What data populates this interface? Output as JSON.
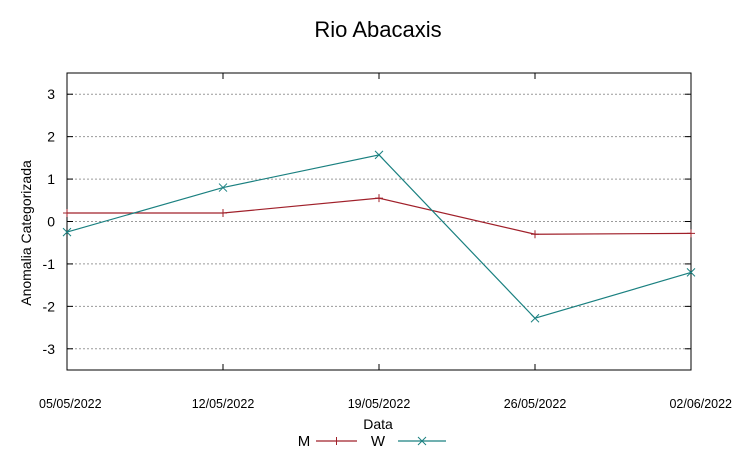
{
  "chart_data": {
    "type": "line",
    "title": "Rio Abacaxis",
    "xlabel": "Data",
    "ylabel": "Anomalia Categorizada",
    "x": [
      "05/05/2022",
      "12/05/2022",
      "19/05/2022",
      "26/05/2022",
      "02/06/2022"
    ],
    "ylim": [
      -3.5,
      3.5
    ],
    "yticks": [
      "3",
      "2",
      "1",
      "0",
      "-1",
      "-2",
      "-3"
    ],
    "grid": true,
    "legend_position": "bottom",
    "series": [
      {
        "name": "M",
        "values": [
          0.2,
          0.2,
          0.55,
          -0.3,
          -0.28
        ],
        "color": "#a0202a",
        "marker": "plus"
      },
      {
        "name": "W",
        "values": [
          -0.25,
          0.8,
          1.57,
          -2.28,
          -1.2
        ],
        "color": "#1a8080",
        "marker": "x"
      }
    ]
  }
}
